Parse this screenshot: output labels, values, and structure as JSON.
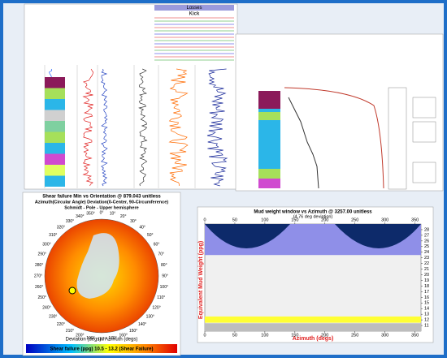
{
  "log_panel": {
    "headers": [
      "Losses",
      "Kick"
    ]
  },
  "stereonet": {
    "title": "Shear failure Min vs Orientation @ 879.043 unitless",
    "subtitle": "Azimuth(Circular Angle) Deviation(0-Center, 90-Circumference)",
    "projection": "Schmidt - Pole - Upper hemisphere",
    "azimuth_labels": [
      "0°",
      "10°",
      "20°",
      "30°",
      "40°",
      "50°",
      "60°",
      "70°",
      "80°",
      "90°",
      "100°",
      "110°",
      "120°",
      "130°",
      "140°",
      "150°",
      "160°",
      "170°",
      "180°",
      "190°",
      "200°",
      "210°",
      "220°",
      "230°",
      "240°",
      "250°",
      "260°",
      "270°",
      "280°",
      "290°",
      "300°",
      "310°",
      "320°",
      "330°",
      "340°",
      "350°"
    ],
    "axis_label": "Deviation (degs) / Azimuth (degs)",
    "colorbar_label": "Shear failure (ppg) 10.5 - 13.2 (Shear Failure)"
  },
  "chart_data": {
    "type": "bands",
    "title": "Mud weight window vs Azimuth @ 3257.00 unitless",
    "subtitle": "(4.76 deg deviation)",
    "x_label": "Azimuth (degs)",
    "y_label": "Equivalent Mud Weight (ppg)",
    "xlim": [
      0,
      360
    ],
    "xticks": [
      0,
      50,
      100,
      150,
      200,
      250,
      300,
      350
    ],
    "ylim": [
      10,
      29
    ],
    "yticks": [
      11,
      12,
      13,
      14,
      15,
      16,
      17,
      18,
      19,
      20,
      21,
      22,
      23,
      24,
      25,
      26,
      27,
      28
    ],
    "bands": [
      {
        "color": "#8f8fe8",
        "from": 23.5,
        "to": 29
      },
      {
        "color": "#ffff33",
        "from": 11.5,
        "to": 12.6
      },
      {
        "color": "#bdbdbd",
        "from": 10,
        "to": 11.4
      }
    ]
  }
}
